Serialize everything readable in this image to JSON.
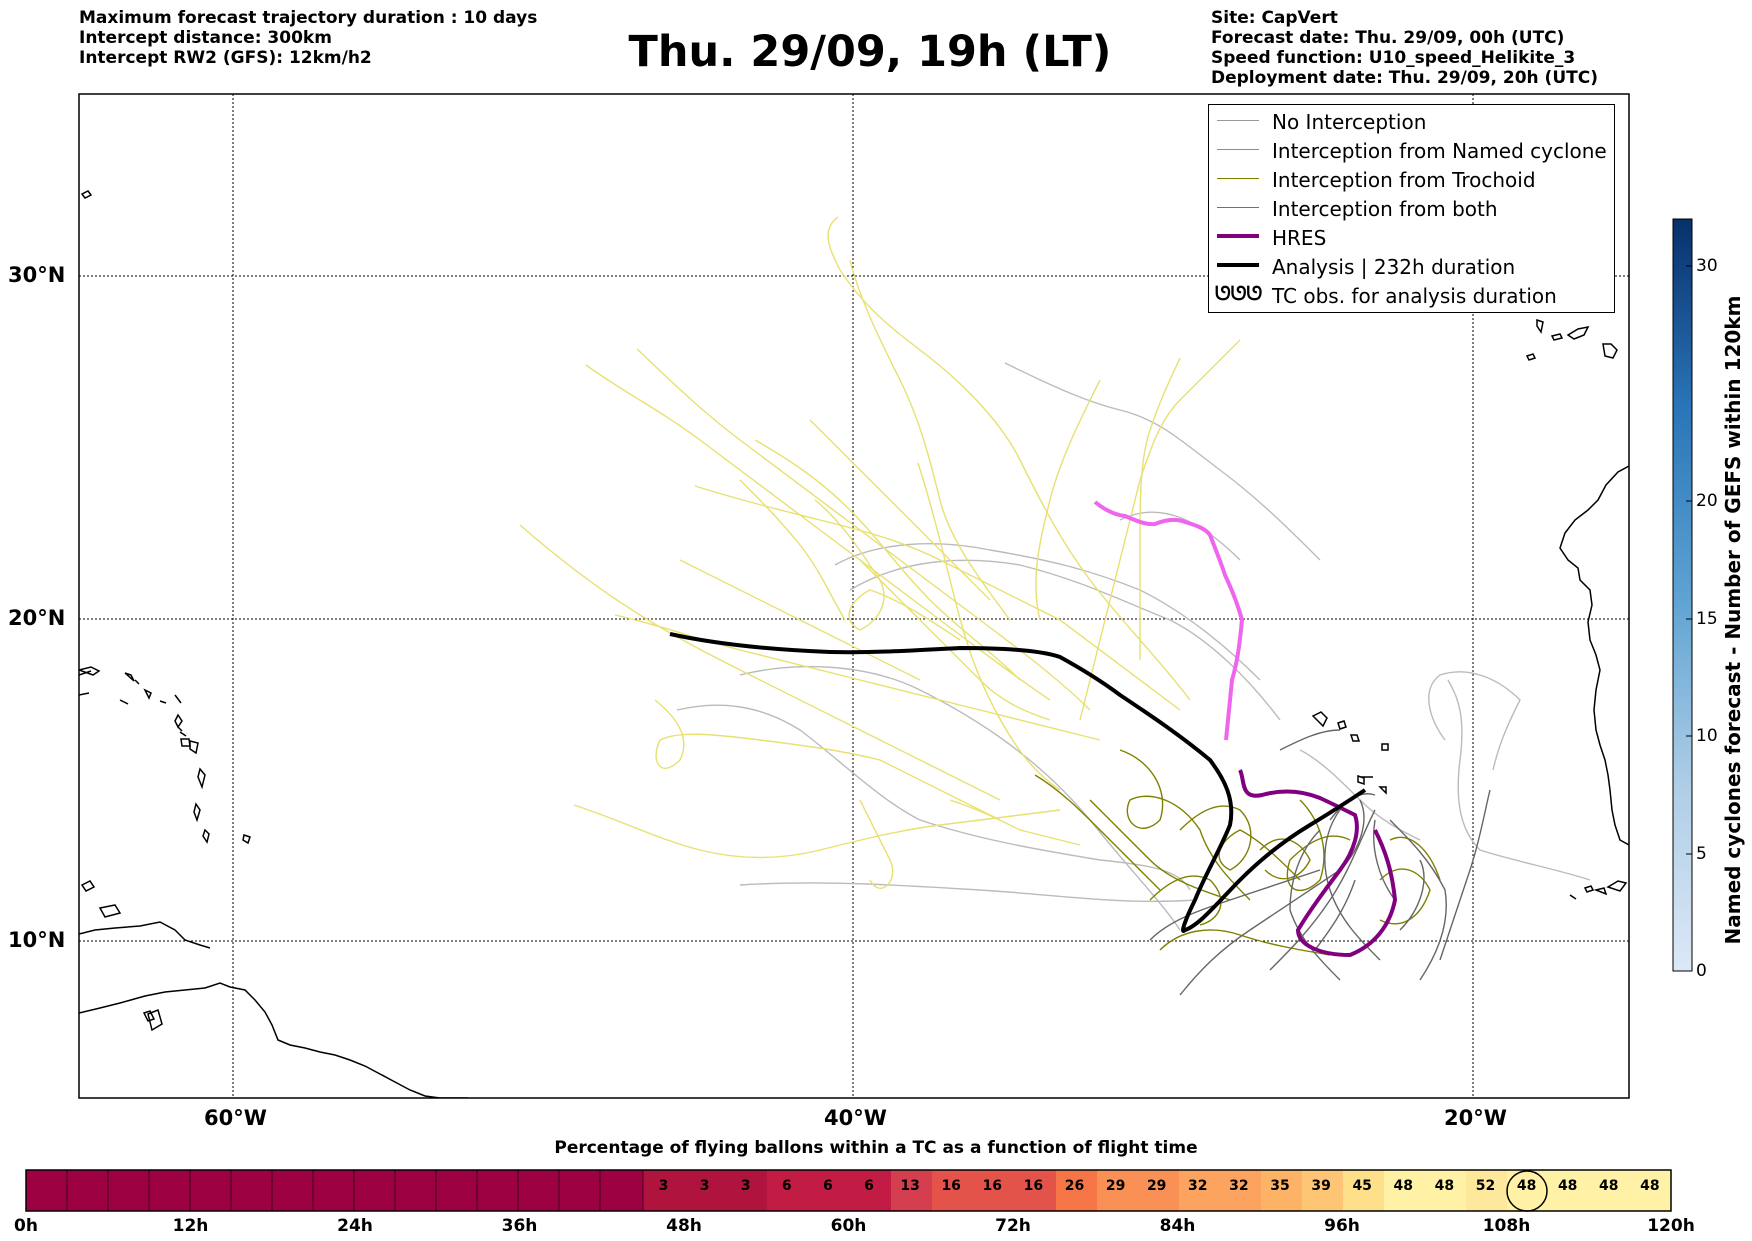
{
  "header_left": {
    "line1": "Maximum forecast trajectory duration : 10 days",
    "line2": "Intercept distance: 300km",
    "line3": "Intercept RW2 (GFS):  12km/h2"
  },
  "title": "Thu. 29/09, 19h (LT)",
  "header_right": {
    "line1": "Site: CapVert",
    "line2": "Forecast date: Thu. 29/09, 00h (UTC)",
    "line3": "Speed function: U10_speed_Helikite_3",
    "line4": "Deployment date: Thu. 29/09, 20h (UTC)"
  },
  "map": {
    "lat_labels": [
      "30°N",
      "20°N",
      "10°N"
    ],
    "lon_labels": [
      "60°W",
      "40°W",
      "20°W"
    ],
    "colors": {
      "no_interception": "#999999",
      "named_cyclone": "#ff6633",
      "trochoid": "#808000",
      "both": "#2ca02c",
      "hres": "#800080",
      "hres_forecast": "#ee66ee",
      "analysis": "#000000",
      "ensemble_yellow": "#e8e070"
    }
  },
  "legend": {
    "items": [
      {
        "label": "No Interception",
        "icon": "line-gray"
      },
      {
        "label": "Interception from Named cyclone",
        "icon": "line-orange"
      },
      {
        "label": "Interception from Trochoid",
        "icon": "line-olive"
      },
      {
        "label": "Interception from both",
        "icon": "line-green"
      },
      {
        "label": "HRES",
        "icon": "line-purple-thick"
      },
      {
        "label": "Analysis | 232h duration",
        "icon": "line-black-thick"
      },
      {
        "label": "TC obs. for analysis duration",
        "icon": "cyclone-symbols-icon"
      }
    ],
    "tc_symbol": "ᘎᘎᘎ"
  },
  "colorbar": {
    "title": "Named cyclones forecast - Number of GEFS within 120km",
    "ticks": [
      "30",
      "20",
      "15",
      "10",
      "5",
      "0"
    ],
    "range": [
      0,
      32
    ]
  },
  "timebar": {
    "title": "Percentage of flying ballons within a TC as a function of flight time",
    "values": [
      "3",
      "3",
      "3",
      "6",
      "6",
      "6",
      "13",
      "16",
      "16",
      "16",
      "26",
      "29",
      "29",
      "32",
      "32",
      "35",
      "39",
      "45",
      "48",
      "48",
      "52",
      "48",
      "48",
      "48",
      "48"
    ],
    "time_labels": [
      "0h",
      "12h",
      "24h",
      "36h",
      "48h",
      "60h",
      "72h",
      "84h",
      "96h",
      "108h",
      "120h"
    ],
    "highlighted_index": 21
  }
}
